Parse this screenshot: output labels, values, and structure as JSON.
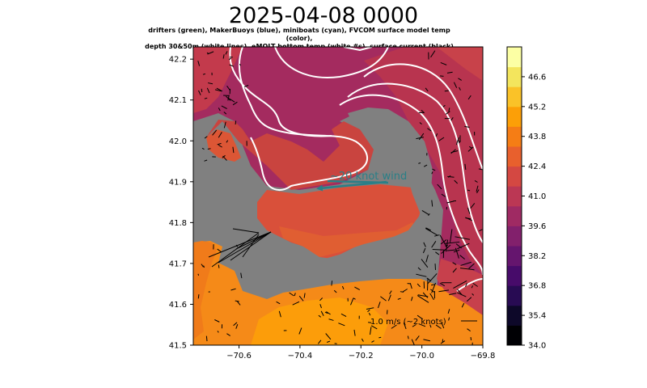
{
  "title": "2025-04-08 0000",
  "subtitle_line1": "drifters (green), MakerBuoys (blue),  miniboats (cyan), FVCOM surface model temp (color),",
  "subtitle_line2": "depth 30&50m (white lines), eMOLT bottom temp (white #s), surface current (black)",
  "map": {
    "lon_range": [
      -70.75,
      -69.8
    ],
    "lat_range": [
      41.5,
      42.23
    ],
    "x_ticks": [
      "−70.6",
      "−70.4",
      "−70.2",
      "−70.0",
      "−69.8"
    ],
    "x_tick_values": [
      -70.6,
      -70.4,
      -70.2,
      -70.0,
      -69.8
    ],
    "y_ticks": [
      "41.5",
      "41.6",
      "41.7",
      "41.8",
      "41.9",
      "42.0",
      "42.1",
      "42.2"
    ],
    "y_tick_values": [
      41.5,
      41.6,
      41.7,
      41.8,
      41.9,
      42.0,
      42.1,
      42.2
    ],
    "land_color": "#808080"
  },
  "wind_annotation": {
    "text": "~20 knot wind",
    "color": "#2a7f87"
  },
  "current_scale": {
    "text": "1.0 m/s (~2 knots)"
  },
  "colorbar": {
    "tick_labels": [
      "34.0",
      "35.4",
      "36.8",
      "38.2",
      "39.6",
      "41.0",
      "42.4",
      "43.8",
      "45.2",
      "46.6"
    ],
    "min": 34.0,
    "max": 48.0,
    "colors": [
      "#000004",
      "#0d0829",
      "#280b53",
      "#470b6a",
      "#65156e",
      "#82206c",
      "#9f2a63",
      "#bb3754",
      "#d44842",
      "#e8602d",
      "#f57d15",
      "#fc9f07",
      "#fac228",
      "#f3e55d",
      "#fcffa4"
    ]
  }
}
